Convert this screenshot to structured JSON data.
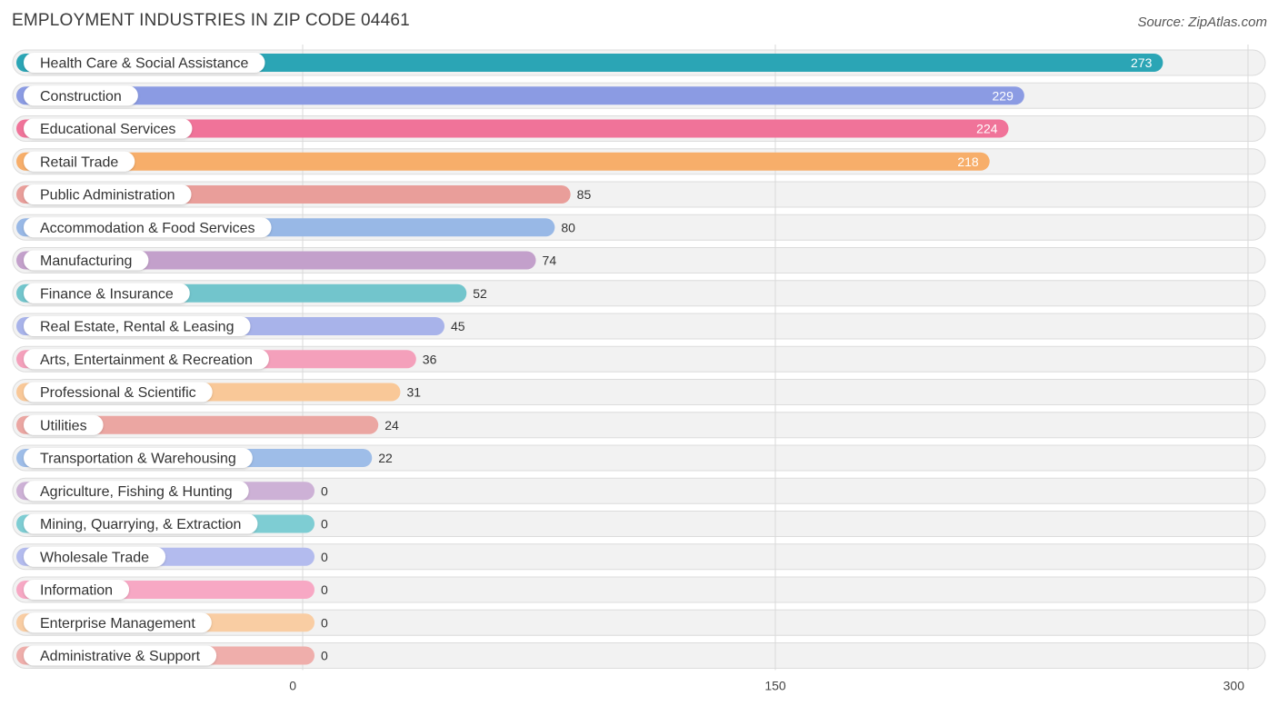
{
  "title": "EMPLOYMENT INDUSTRIES IN ZIP CODE 04461",
  "source": "Source: ZipAtlas.com",
  "chart_data": {
    "type": "bar",
    "orientation": "horizontal",
    "title": "EMPLOYMENT INDUSTRIES IN ZIP CODE 04461",
    "xlim": [
      0,
      300
    ],
    "xticks": [
      0,
      150,
      300
    ],
    "grid": true,
    "categories": [
      "Health Care & Social Assistance",
      "Construction",
      "Educational Services",
      "Retail Trade",
      "Public Administration",
      "Accommodation & Food Services",
      "Manufacturing",
      "Finance & Insurance",
      "Real Estate, Rental & Leasing",
      "Arts, Entertainment & Recreation",
      "Professional & Scientific",
      "Utilities",
      "Transportation & Warehousing",
      "Agriculture, Fishing & Hunting",
      "Mining, Quarrying, & Extraction",
      "Wholesale Trade",
      "Information",
      "Enterprise Management",
      "Administrative & Support"
    ],
    "values": [
      273,
      229,
      224,
      218,
      85,
      80,
      74,
      52,
      45,
      36,
      31,
      24,
      22,
      0,
      0,
      0,
      0,
      0,
      0
    ],
    "colors": [
      "#2ba5b5",
      "#8b9be3",
      "#f07399",
      "#f7ae6a",
      "#e99e9a",
      "#98b8e6",
      "#c3a0cb",
      "#72c5cc",
      "#a8b3ea",
      "#f4a0bb",
      "#f9c898",
      "#eba6a2",
      "#9ebde8",
      "#cdb1d6",
      "#7ecdd3",
      "#b3bbee",
      "#f7a8c4",
      "#f9cda3",
      "#efaeab"
    ]
  }
}
